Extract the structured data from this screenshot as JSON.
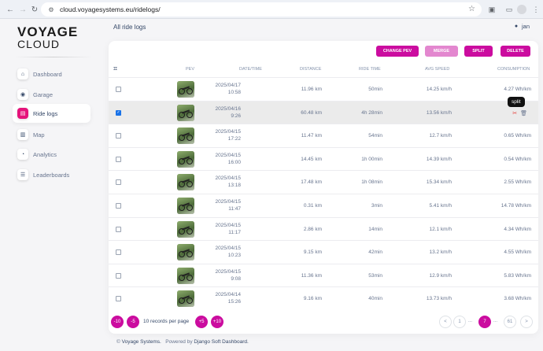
{
  "browser": {
    "url": "cloud.voyagesystems.eu/ridelogs/"
  },
  "logo": {
    "line1": "VOYAGE",
    "line2": "CLOUD"
  },
  "sidebar": {
    "items": [
      {
        "label": "Dashboard",
        "icon": "home-icon"
      },
      {
        "label": "Garage",
        "icon": "bike-icon"
      },
      {
        "label": "Ride logs",
        "icon": "document-icon"
      },
      {
        "label": "Map",
        "icon": "map-icon"
      },
      {
        "label": "Analytics",
        "icon": "chart-icon"
      },
      {
        "label": "Leaderboards",
        "icon": "list-icon"
      }
    ],
    "active_index": 2
  },
  "header": {
    "title": "All ride logs",
    "user": "jan"
  },
  "actions": {
    "change_pev": "CHANGE PEV",
    "merge": "MERGE",
    "split": "SPLIT",
    "delete": "DELETE"
  },
  "table": {
    "columns": {
      "pev": "PEV",
      "datetime": "DATE/TIME",
      "distance": "DISTANCE",
      "ride_time": "RIDE TIME",
      "avg_speed": "AVG SPEED",
      "consumption": "CONSUMPTION"
    },
    "rows": [
      {
        "date": "2025/04/17",
        "time": "10:58",
        "distance": "11.96 km",
        "ride_time": "50min",
        "avg_speed": "14.25 km/h",
        "consumption": "4.27 Wh/km",
        "checked": false
      },
      {
        "date": "2025/04/16",
        "time": "9:26",
        "distance": "60.48 km",
        "ride_time": "4h 28min",
        "avg_speed": "13.56 km/h",
        "consumption": "",
        "checked": true
      },
      {
        "date": "2025/04/15",
        "time": "17:22",
        "distance": "11.47 km",
        "ride_time": "54min",
        "avg_speed": "12.7 km/h",
        "consumption": "0.65 Wh/km",
        "checked": false
      },
      {
        "date": "2025/04/15",
        "time": "16:00",
        "distance": "14.45 km",
        "ride_time": "1h 00min",
        "avg_speed": "14.39 km/h",
        "consumption": "0.54 Wh/km",
        "checked": false
      },
      {
        "date": "2025/04/15",
        "time": "13:18",
        "distance": "17.48 km",
        "ride_time": "1h 08min",
        "avg_speed": "15.34 km/h",
        "consumption": "2.55 Wh/km",
        "checked": false
      },
      {
        "date": "2025/04/15",
        "time": "11:47",
        "distance": "0.31 km",
        "ride_time": "3min",
        "avg_speed": "5.41 km/h",
        "consumption": "14.78 Wh/km",
        "checked": false
      },
      {
        "date": "2025/04/15",
        "time": "11:17",
        "distance": "2.86 km",
        "ride_time": "14min",
        "avg_speed": "12.1 km/h",
        "consumption": "4.34 Wh/km",
        "checked": false
      },
      {
        "date": "2025/04/15",
        "time": "10:23",
        "distance": "9.15 km",
        "ride_time": "42min",
        "avg_speed": "13.2 km/h",
        "consumption": "4.55 Wh/km",
        "checked": false
      },
      {
        "date": "2025/04/15",
        "time": "9:08",
        "distance": "11.36 km",
        "ride_time": "53min",
        "avg_speed": "12.9 km/h",
        "consumption": "5.83 Wh/km",
        "checked": false
      },
      {
        "date": "2025/04/14",
        "time": "15:26",
        "distance": "9.16 km",
        "ride_time": "40min",
        "avg_speed": "13.73 km/h",
        "consumption": "3.68 Wh/km",
        "checked": false
      }
    ]
  },
  "tooltip": "split",
  "pagination": {
    "minus10": "-10",
    "minus5": "-5",
    "per_page": "10 records per page",
    "plus5": "+5",
    "plus10": "+10",
    "prev": "<",
    "first": "1",
    "dots1": "...",
    "current": "7",
    "dots2": "...",
    "last": "61",
    "next": ">"
  },
  "footer": {
    "prefix": "© ",
    "company": "Voyage Systems.",
    "powered": "Powered by ",
    "powered_by": "Django Soft Dashboard."
  },
  "colors": {
    "accent": "#cb0c9f",
    "active_icon": "#e5137b"
  }
}
